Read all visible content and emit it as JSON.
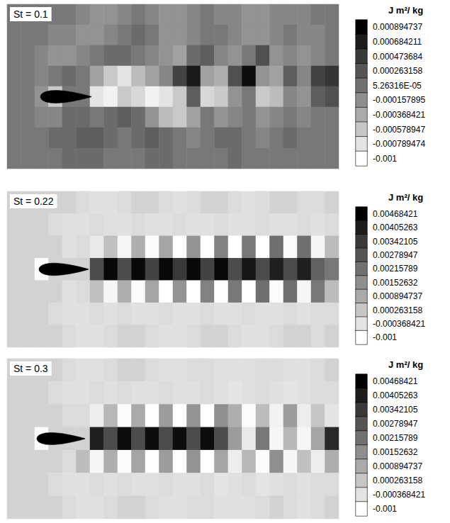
{
  "chart_data": [
    {
      "type": "heatmap",
      "title": "St = 0.1",
      "tick_labels": false,
      "cells": [
        [
          0,
          0,
          0,
          0,
          0,
          -0.0001,
          -0.0002,
          -0.0002,
          -0.0001,
          0,
          -0.0001,
          -0.0002,
          -0.0002,
          -0.0001,
          0,
          -0.0001,
          -0.0001,
          -0.0002,
          -0.0002,
          -0.0001,
          -0.0001,
          -0.0001,
          0,
          0
        ],
        [
          0,
          0,
          0,
          -0.0001,
          -0.0001,
          -0.0002,
          -0.0002,
          -0.0001,
          0,
          0.0001,
          0,
          -0.0002,
          -0.0002,
          -0.0001,
          0,
          0,
          -0.0001,
          -0.0002,
          -0.0002,
          -0.0001,
          0,
          -0.0001,
          -0.0001,
          0
        ],
        [
          0,
          0,
          -0.0001,
          -0.0002,
          -0.0002,
          -0.0001,
          0,
          0.0001,
          0.0001,
          0,
          -0.0001,
          -0.0002,
          -0.0003,
          0.0001,
          0.0002,
          -0.0001,
          -0.0002,
          0,
          0.0003,
          -0.0002,
          -0.0001,
          -0.0002,
          -0.0001,
          0
        ],
        [
          0,
          0,
          -0.0001,
          0,
          0.0001,
          0,
          -0.0003,
          -0.0006,
          -0.0008,
          -0.0005,
          -0.0003,
          -0.0001,
          0.0004,
          0.0007,
          -0.0003,
          -0.0004,
          0.0003,
          0.0008,
          -0.0002,
          -0.0003,
          0.0002,
          -0.0001,
          0.0004,
          0.0005
        ],
        [
          0,
          0,
          -0.0002,
          -0.0006,
          0,
          0,
          -0.0008,
          -0.0009,
          -0.0006,
          -0.0007,
          -0.0009,
          -0.0008,
          -0.0006,
          0.0002,
          -0.0007,
          -0.0006,
          -0.0002,
          0,
          -0.0006,
          -0.0005,
          -0.0001,
          -0.0002,
          0.0002,
          0.0003
        ],
        [
          0,
          0,
          -0.0001,
          -0.0001,
          0.0001,
          0.0001,
          0,
          0.0001,
          0.0002,
          0.0001,
          -0.0002,
          -0.0005,
          -0.0006,
          -0.0003,
          0,
          -0.0002,
          -0.0001,
          0,
          -0.0002,
          -0.0001,
          0,
          -0.0001,
          0,
          0
        ],
        [
          0,
          0,
          0,
          0.0001,
          0.0001,
          0.0002,
          0.0002,
          0.0001,
          0,
          0.0001,
          0.0002,
          0.0001,
          0,
          -0.0001,
          0,
          0.0001,
          0.0001,
          0,
          -0.0001,
          0,
          0.0001,
          0,
          0,
          0
        ],
        [
          0,
          0,
          0,
          0,
          0.0001,
          0.0001,
          0.0001,
          0,
          0,
          0,
          0.0001,
          0.0001,
          0,
          0,
          0,
          0,
          0.0001,
          0,
          0,
          0,
          0,
          0,
          0,
          0
        ]
      ],
      "colorbar": {
        "title": "J m²/ kg",
        "range": [
          -0.001,
          0.000894737
        ],
        "ticks": [
          0.000894737,
          0.000684211,
          0.000473684,
          0.000263158,
          {
            "value": 5.26316e-05,
            "label": "5.26316E-05"
          },
          -0.000157895,
          -0.000368421,
          -0.000578947,
          -0.000789474,
          -0.001
        ]
      }
    },
    {
      "type": "heatmap",
      "title": "St = 0.22",
      "tick_labels": false,
      "cells": [
        [
          0,
          0,
          0,
          0,
          0,
          -0.0002,
          -0.0003,
          -0.0003,
          -0.0002,
          0,
          0,
          -0.0002,
          -0.0003,
          -0.0002,
          0,
          0,
          -0.0002,
          -0.0003,
          -0.0002,
          0,
          0,
          -0.0002,
          -0.0002,
          0
        ],
        [
          0,
          0,
          0,
          -0.0002,
          -0.0003,
          -0.0003,
          -0.0002,
          -0.0003,
          -0.0003,
          -0.0002,
          -0.0003,
          -0.0003,
          -0.0002,
          -0.0003,
          -0.0003,
          -0.0002,
          -0.0003,
          -0.0003,
          -0.0002,
          -0.0003,
          -0.0003,
          -0.0002,
          -0.0003,
          -0.0002
        ],
        [
          0,
          0,
          0,
          0,
          -0.0003,
          -0.0002,
          -0.0005,
          0.0004,
          -0.0008,
          0.0008,
          -0.0009,
          0.001,
          -0.001,
          0.0014,
          -0.001,
          0.0018,
          -0.001,
          0.002,
          -0.001,
          0.0022,
          -0.0009,
          0.0022,
          -0.0008,
          0.0005
        ],
        [
          0,
          0,
          -0.0009,
          0,
          0,
          0,
          0.003,
          0.0045,
          0.003,
          0.0045,
          0.0032,
          0.0045,
          0.0034,
          0.0045,
          0.0032,
          0.0045,
          0.003,
          0.0042,
          0.003,
          0.004,
          0.003,
          0.004,
          0.0025,
          0.002
        ],
        [
          0,
          0,
          0,
          0,
          -0.0003,
          -0.0002,
          0.0004,
          -0.0008,
          0.0008,
          -0.0009,
          0.001,
          -0.001,
          0.0014,
          -0.001,
          0.0018,
          -0.001,
          0.002,
          -0.001,
          0.0022,
          -0.0009,
          0.0022,
          -0.0008,
          0.002,
          0.0005
        ],
        [
          0,
          0,
          0,
          -0.0002,
          -0.0003,
          -0.0003,
          -0.0002,
          -0.0003,
          -0.0002,
          -0.0003,
          -0.0003,
          -0.0002,
          -0.0003,
          -0.0003,
          -0.0002,
          -0.0003,
          -0.0003,
          -0.0002,
          -0.0003,
          -0.0003,
          -0.0002,
          -0.0003,
          -0.0002,
          -0.0002
        ],
        [
          0,
          0,
          0,
          0,
          -0.0002,
          -0.0003,
          -0.0003,
          -0.0002,
          0,
          0,
          -0.0002,
          -0.0003,
          -0.0003,
          -0.0002,
          0,
          0,
          -0.0002,
          -0.0003,
          -0.0003,
          -0.0002,
          0,
          0,
          -0.0002,
          0
        ]
      ],
      "colorbar": {
        "title": "J m²/ kg",
        "range": [
          -0.001,
          0.00468421
        ],
        "ticks": [
          0.00468421,
          0.00405263,
          0.00342105,
          0.00278947,
          0.00215789,
          0.00152632,
          0.000894737,
          0.000263158,
          -0.000368421,
          -0.001
        ]
      }
    },
    {
      "type": "heatmap",
      "title": "St = 0.3",
      "tick_labels": false,
      "cells": [
        [
          0,
          0,
          0,
          0,
          -0.0002,
          -0.0003,
          -0.0003,
          -0.0002,
          0,
          0,
          -0.0002,
          -0.0003,
          -0.0003,
          -0.0002,
          -0.0002,
          -0.0003,
          -0.0003,
          -0.0003,
          -0.0002,
          -0.0002,
          -0.0003,
          -0.0003,
          -0.0002,
          0
        ],
        [
          0,
          0,
          0,
          -0.0002,
          -0.0003,
          -0.0003,
          -0.0002,
          -0.0003,
          -0.0002,
          -0.0003,
          -0.0003,
          -0.0002,
          -0.0003,
          -0.0003,
          -0.0002,
          -0.0003,
          -0.0004,
          -0.0003,
          -0.0002,
          -0.0003,
          -0.0004,
          -0.0003,
          -0.0002,
          -0.0002
        ],
        [
          0,
          0,
          0,
          0,
          -0.0002,
          -0.0002,
          -0.0006,
          0.0006,
          -0.0009,
          0.0009,
          -0.001,
          0.0012,
          -0.001,
          0.0014,
          -0.001,
          0.0015,
          0.0008,
          -0.0009,
          0.0005,
          -0.0007,
          0.0012,
          -0.0006,
          0.0003,
          -0.0004
        ],
        [
          0,
          0,
          -0.0009,
          0,
          0,
          0,
          0.004,
          0.003,
          0.0044,
          0.003,
          0.0044,
          0.003,
          0.0044,
          0.003,
          0.0044,
          0.003,
          0.0012,
          -0.0005,
          0.002,
          -0.0008,
          0.0006,
          -0.0008,
          0.001,
          0.0038
        ],
        [
          0,
          0,
          0,
          0,
          -0.0002,
          0.0005,
          -0.0008,
          0.0008,
          -0.0009,
          0.001,
          -0.001,
          0.0012,
          -0.001,
          0.0014,
          -0.001,
          0.001,
          -0.0006,
          0.0006,
          -0.0009,
          0.0015,
          -0.0008,
          0.0004,
          -0.0006,
          0.0008
        ],
        [
          0,
          0,
          0,
          -0.0002,
          -0.0003,
          -0.0003,
          -0.0002,
          -0.0003,
          -0.0002,
          -0.0003,
          -0.0003,
          -0.0002,
          -0.0003,
          -0.0003,
          -0.0002,
          -0.0004,
          -0.0003,
          -0.0002,
          -0.0004,
          -0.0003,
          -0.0002,
          -0.0003,
          -0.0002,
          -0.0002
        ],
        [
          0,
          0,
          0,
          0,
          -0.0002,
          -0.0003,
          -0.0003,
          -0.0002,
          0,
          0,
          -0.0002,
          -0.0003,
          -0.0003,
          -0.0002,
          -0.0002,
          -0.0003,
          -0.0003,
          -0.0003,
          -0.0002,
          0,
          -0.0002,
          -0.0003,
          -0.0002,
          0
        ]
      ],
      "colorbar": {
        "title": "J m²/ kg",
        "range": [
          -0.001,
          0.00468421
        ],
        "ticks": [
          0.00468421,
          0.00405263,
          0.00342105,
          0.00278947,
          0.00215789,
          0.00152632,
          0.000894737,
          0.000263158,
          -0.000368421,
          -0.001
        ]
      }
    }
  ]
}
